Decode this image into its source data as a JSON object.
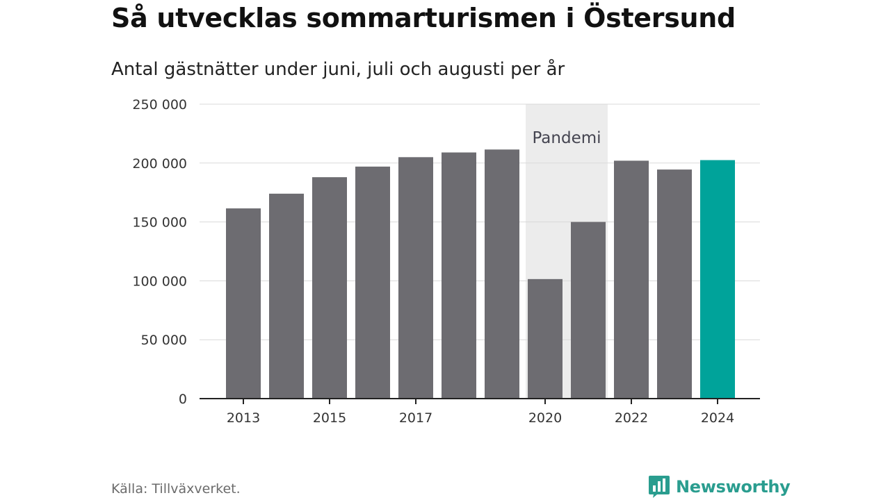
{
  "title": "Så utvecklas sommarturismen i Östersund",
  "subtitle": "Antal gästnätter under juni, juli och augusti per år",
  "source": "Källa: Tillväxverket.",
  "logo": {
    "text": "Newsworthy",
    "icon": "bar-chart-speech-icon",
    "color": "#2a9d8f"
  },
  "colors": {
    "bar": "#6d6c71",
    "highlight": "#00a39a",
    "band": "#ececec",
    "grid": "#d9d9d9",
    "axis": "#222222"
  },
  "chart_data": {
    "type": "bar",
    "title": "Så utvecklas sommarturismen i Östersund",
    "subtitle": "Antal gästnätter under juni, juli och augusti per år",
    "categories": [
      "2013",
      "2014",
      "2015",
      "2016",
      "2017",
      "2018",
      "2019",
      "2020",
      "2021",
      "2022",
      "2023",
      "2024"
    ],
    "values": [
      161500,
      174000,
      188000,
      197000,
      205000,
      209000,
      211500,
      101500,
      150000,
      202000,
      194500,
      202500
    ],
    "x_tick_labels": [
      "2013",
      "2015",
      "2017",
      "2020",
      "2022",
      "2024"
    ],
    "highlight_category": "2024",
    "ylim": [
      0,
      250000
    ],
    "y_ticks": [
      0,
      50000,
      100000,
      150000,
      200000,
      250000
    ],
    "y_tick_labels": [
      "0",
      "50 000",
      "100 000",
      "150 000",
      "200 000",
      "250 000"
    ],
    "xlabel": "",
    "ylabel": "",
    "grid": true,
    "annotations": [
      {
        "type": "band",
        "label": "Pandemi",
        "from": "2020",
        "to": "2021"
      }
    ]
  }
}
